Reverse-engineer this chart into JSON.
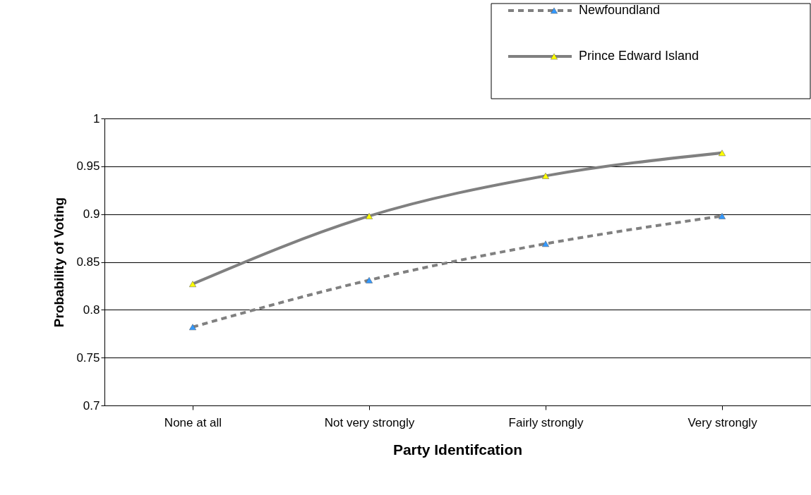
{
  "chart_data": {
    "type": "line",
    "xlabel": "Party Identifcation",
    "ylabel": "Probability of Voting",
    "categories": [
      "None at all",
      "Not very strongly",
      "Fairly strongly",
      "Very strongly"
    ],
    "series": [
      {
        "name": "Newfoundland",
        "color": "#3399ff",
        "line_style": "dashed",
        "values": [
          0.782,
          0.831,
          0.869,
          0.898
        ]
      },
      {
        "name": "Prince Edward Island",
        "color": "#ffff00",
        "line_style": "solid",
        "values": [
          0.827,
          0.898,
          0.94,
          0.964
        ]
      }
    ],
    "ylim": [
      0.7,
      1
    ],
    "yticks": [
      0.7,
      0.75,
      0.8,
      0.85,
      0.9,
      0.95,
      1
    ],
    "grid": "y",
    "legend": "top right",
    "marker": "triangle"
  }
}
